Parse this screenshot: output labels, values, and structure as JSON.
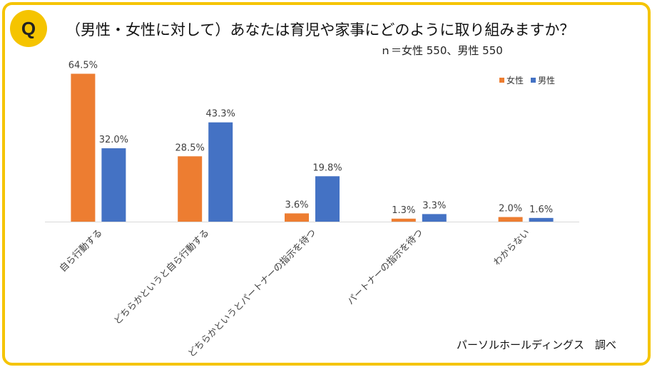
{
  "header": {
    "badge": "Q",
    "title": "（男性・女性に対して）あなたは育児や家事にどのように取り組みますか？",
    "subtitle": "ｎ＝女性 550、男性 550"
  },
  "footer": {
    "credit": "パーソルホールディングス　調べ"
  },
  "colors": {
    "female": "#ed7d31",
    "male": "#4472c4",
    "frame": "#f5c400"
  },
  "chart_data": {
    "type": "bar",
    "title": "（男性・女性に対して）あなたは育児や家事にどのように取り組みますか？",
    "categories": [
      "自ら行動する",
      "どちらかというと自ら行動する",
      "どちらかというとパートナーの指示を待つ",
      "パートナーの指示を待つ",
      "わからない"
    ],
    "series": [
      {
        "name": "女性",
        "values": [
          64.5,
          28.5,
          3.6,
          1.3,
          2.0
        ],
        "labels": [
          "64.5%",
          "28.5%",
          "3.6%",
          "1.3%",
          "2.0%"
        ]
      },
      {
        "name": "男性",
        "values": [
          32.0,
          43.3,
          19.8,
          3.3,
          1.6
        ],
        "labels": [
          "32.0%",
          "43.3%",
          "19.8%",
          "3.3%",
          "1.6%"
        ]
      }
    ],
    "ylim": [
      0,
      65
    ],
    "legend": "top-right",
    "xlabel": "",
    "ylabel": ""
  }
}
